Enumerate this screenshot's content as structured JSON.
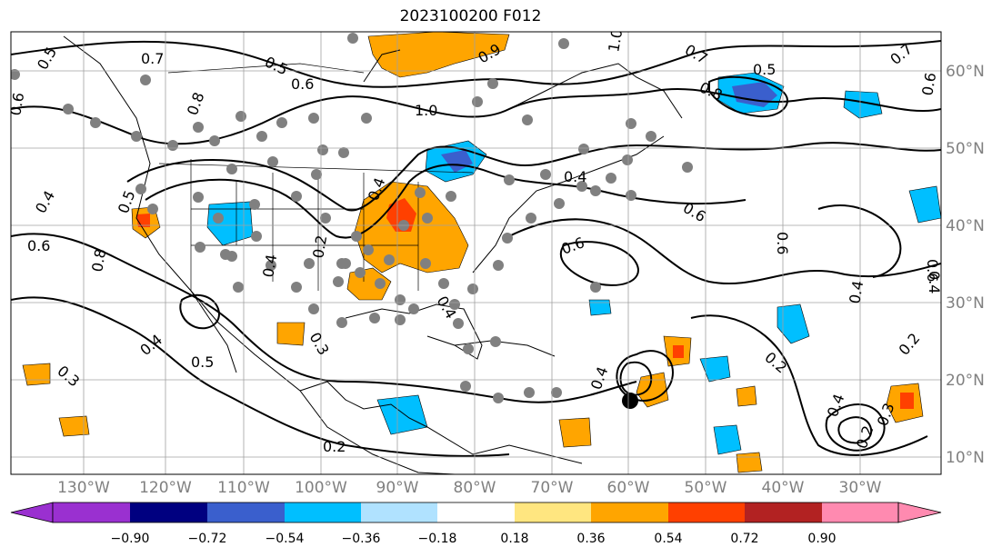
{
  "title": "2023100200 F012",
  "map": {
    "lon_labels": [
      "130°W",
      "120°W",
      "110°W",
      "100°W",
      "90°W",
      "80°W",
      "70°W",
      "60°W",
      "50°W",
      "40°W",
      "30°W"
    ],
    "lat_labels": [
      "60°N",
      "50°N",
      "40°N",
      "30°N",
      "20°N",
      "10°N"
    ],
    "contour_labels": [
      "0.5",
      "0.7",
      "0.6",
      "0.5",
      "0.6",
      "0.8",
      "1.0",
      "1.0",
      "0.9",
      "0.6",
      "0.7",
      "0.5",
      "0.8",
      "0.7",
      "0.6",
      "0.4",
      "0.5",
      "0.6",
      "0.8",
      "0.4",
      "0.6",
      "0.4",
      "0.2",
      "0.4",
      "0.3",
      "0.4",
      "0.5",
      "0.3",
      "0.2",
      "0.4",
      "0.2",
      "0.6",
      "0.6",
      "0.4",
      "0.4",
      "0.4",
      "0.2",
      "0.2",
      "0.4",
      "0.3"
    ],
    "colors": {
      "ocean": "#ffffff",
      "coast": "#000000",
      "grid": "#a0a0a0",
      "gray_dots": "#808080",
      "storm_center": "#000000"
    }
  },
  "colorbar": {
    "ticks": [
      "−0.90",
      "−0.72",
      "−0.54",
      "−0.36",
      "−0.18",
      "0.18",
      "0.36",
      "0.54",
      "0.72",
      "0.90"
    ],
    "colors": [
      "#9a30d0",
      "#000080",
      "#3a5fcd",
      "#00bfff",
      "#b0e2ff",
      "#ffffff",
      "#ffe680",
      "#ffa500",
      "#ff4000",
      "#b22222",
      "#ff80b0",
      "#ff8ab0"
    ]
  }
}
